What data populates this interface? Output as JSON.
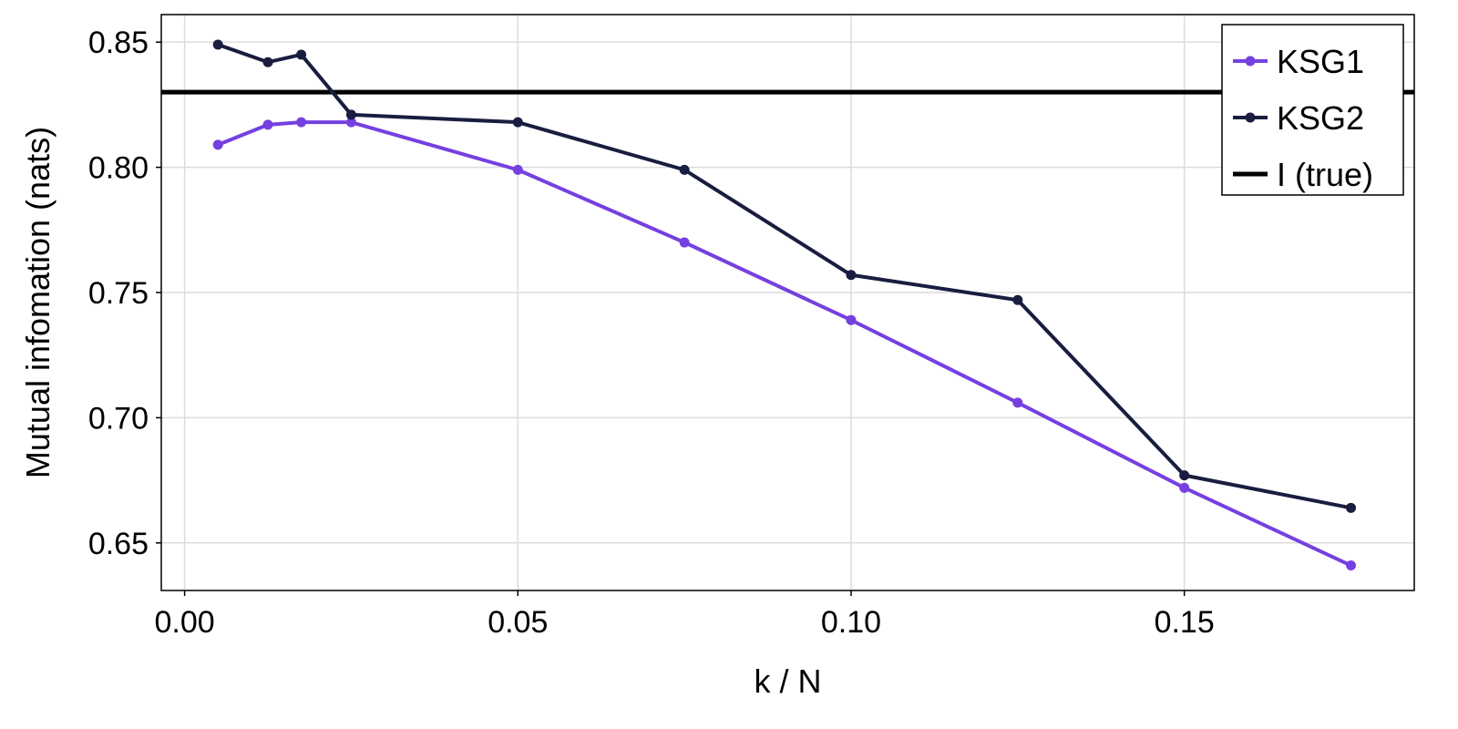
{
  "chart_data": {
    "type": "line",
    "title": "",
    "xlabel": "k / N",
    "ylabel": "Mutual infomation (nats)",
    "xlim": [
      -0.0035,
      0.1845
    ],
    "ylim": [
      0.631,
      0.861
    ],
    "xticks": [
      0.0,
      0.05,
      0.1,
      0.15
    ],
    "xtick_labels": [
      "0.00",
      "0.05",
      "0.10",
      "0.15"
    ],
    "yticks": [
      0.65,
      0.7,
      0.75,
      0.8,
      0.85
    ],
    "ytick_labels": [
      "0.65",
      "0.70",
      "0.75",
      "0.80",
      "0.85"
    ],
    "grid": true,
    "legend_position": "top-right",
    "series": [
      {
        "name": "KSG1",
        "color": "#7540e0",
        "x": [
          0.005,
          0.0125,
          0.0175,
          0.025,
          0.05,
          0.075,
          0.1,
          0.125,
          0.15,
          0.175
        ],
        "values": [
          0.809,
          0.817,
          0.818,
          0.818,
          0.799,
          0.77,
          0.739,
          0.706,
          0.672,
          0.641
        ]
      },
      {
        "name": "KSG2",
        "color": "#191d3f",
        "x": [
          0.005,
          0.0125,
          0.0175,
          0.025,
          0.05,
          0.075,
          0.1,
          0.125,
          0.15,
          0.175
        ],
        "values": [
          0.849,
          0.842,
          0.845,
          0.821,
          0.818,
          0.799,
          0.757,
          0.747,
          0.677,
          0.664
        ]
      }
    ],
    "hlines": [
      {
        "name": "I (true)",
        "y": 0.83,
        "color": "#000000"
      }
    ]
  }
}
